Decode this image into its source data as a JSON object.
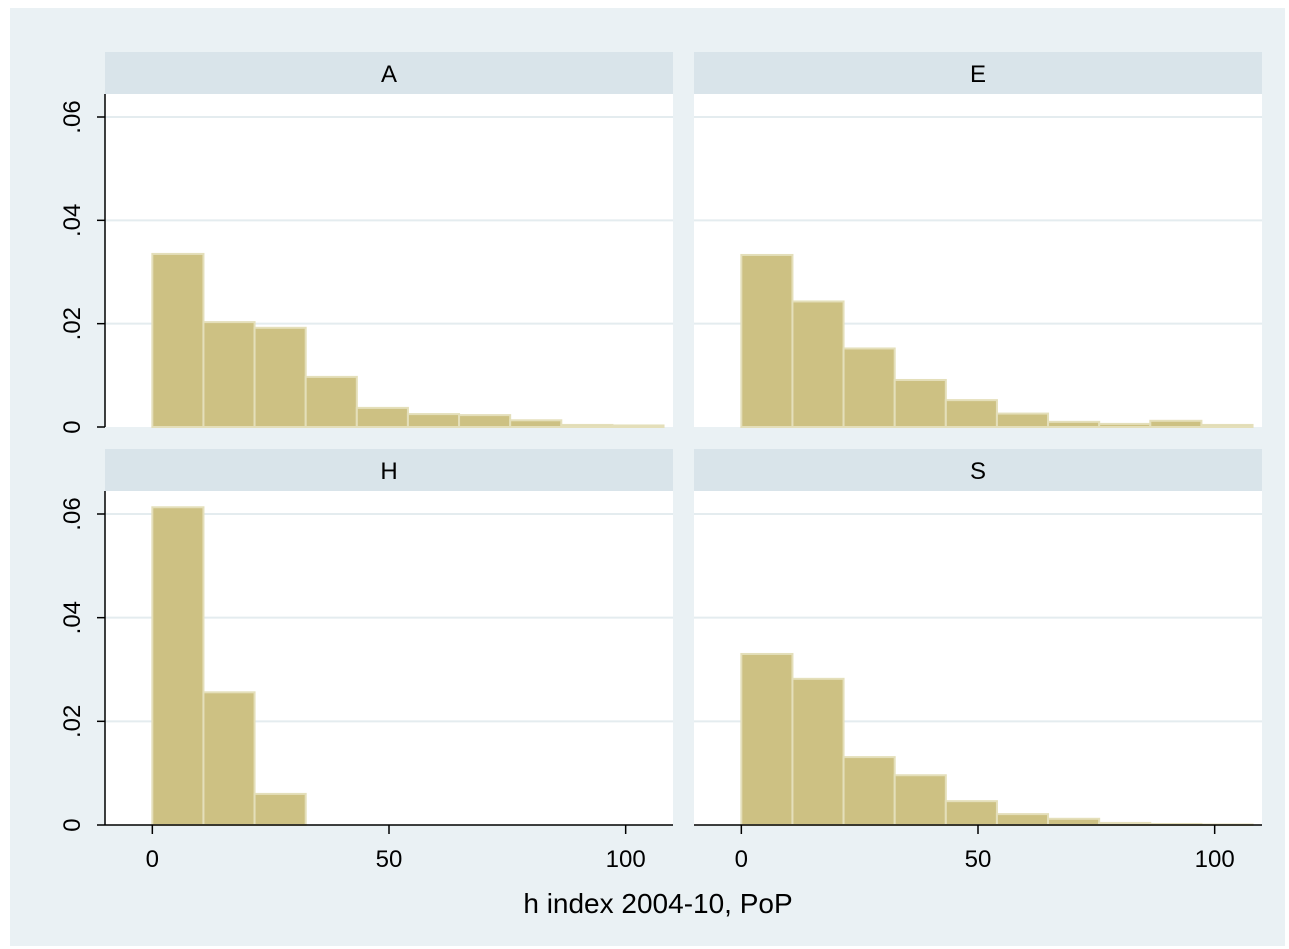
{
  "chart_data": {
    "type": "bar",
    "subtype": "histogram",
    "xlabel": "h index 2004-10, PoP",
    "ylabel": "",
    "xlim": [
      -10,
      110
    ],
    "ylim": [
      0,
      0.06
    ],
    "x_ticks": [
      0,
      50,
      100
    ],
    "x_tick_labels": [
      "0",
      "50",
      "100"
    ],
    "y_ticks": [
      0,
      0.02,
      0.04,
      0.06
    ],
    "y_tick_labels": [
      "0",
      ".02",
      ".04",
      ".06"
    ],
    "grid": true,
    "bin_edges": [
      0,
      10.8,
      21.6,
      32.4,
      43.2,
      54,
      64.8,
      75.6,
      86.4,
      97.2,
      108
    ],
    "panels": [
      {
        "name": "A",
        "values": [
          0.0335,
          0.0203,
          0.0192,
          0.0097,
          0.0037,
          0.0025,
          0.0023,
          0.0013,
          0.0004,
          0.0003
        ]
      },
      {
        "name": "E",
        "values": [
          0.0333,
          0.0243,
          0.0152,
          0.0091,
          0.0052,
          0.0026,
          0.001,
          0.0006,
          0.0012,
          0.0004
        ]
      },
      {
        "name": "H",
        "values": [
          0.0613,
          0.0256,
          0.006
        ]
      },
      {
        "name": "S",
        "values": [
          0.033,
          0.0282,
          0.0131,
          0.0096,
          0.0046,
          0.0021,
          0.0012,
          0.0004,
          0.0002,
          0.0001
        ]
      }
    ]
  },
  "colors": {
    "background": "#eaf1f4",
    "plot_background": "#ffffff",
    "strip_background": "#d9e4ea",
    "bar_fill": "#cdc183",
    "bar_stroke": "#e4dfba",
    "grid": "#e4ecef",
    "axis": "#000000"
  }
}
